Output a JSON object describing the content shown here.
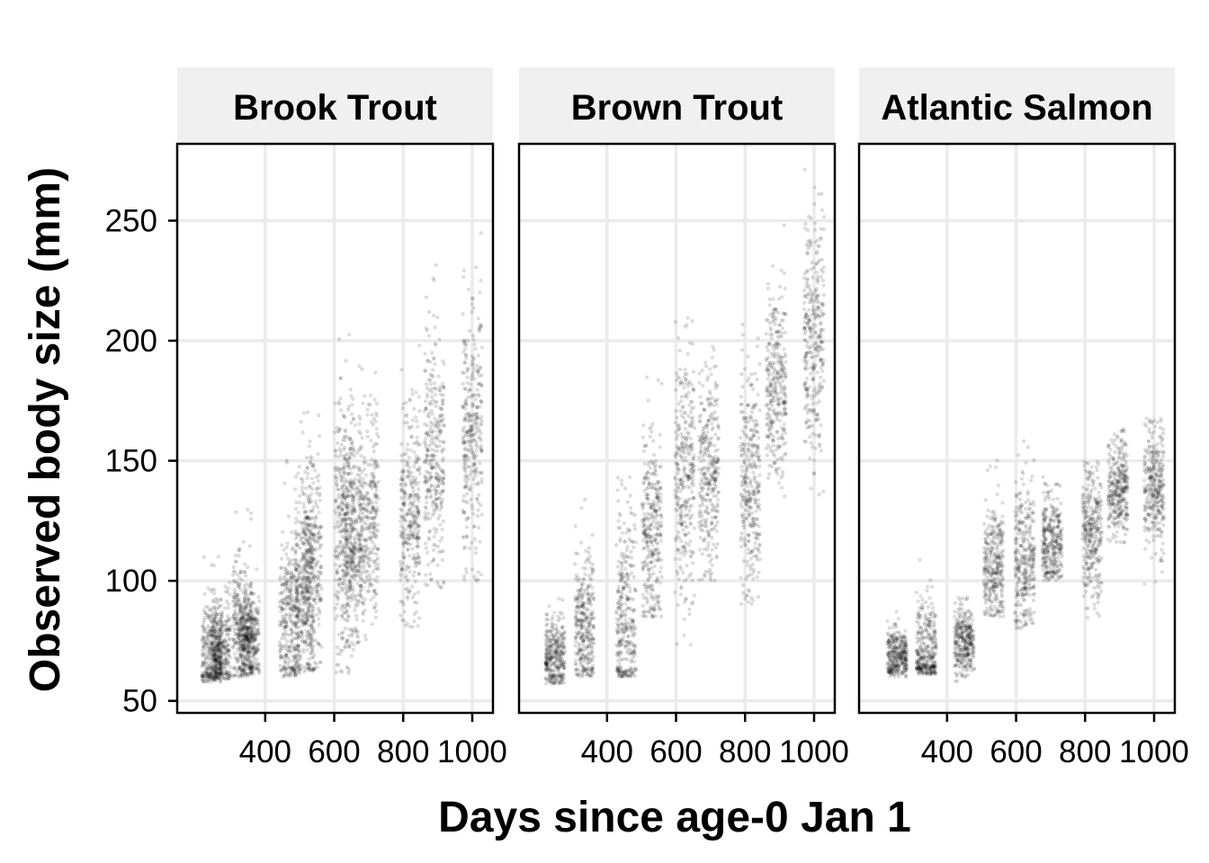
{
  "chart_data": {
    "type": "scatter",
    "xlabel": "Days since age-0 Jan 1",
    "ylabel": "Observed body size (mm)",
    "xlim": [
      145,
      1060
    ],
    "ylim": [
      45,
      282
    ],
    "x_ticks": [
      400,
      600,
      800,
      1000
    ],
    "x_tick_labels": [
      "400",
      "600",
      "800",
      "1000"
    ],
    "y_ticks": [
      50,
      100,
      150,
      200,
      250
    ],
    "y_tick_labels": [
      "50",
      "100",
      "150",
      "200",
      "250"
    ],
    "grid": true,
    "point_color": "#000000",
    "point_alpha": 0.12,
    "facets": [
      {
        "title": "Brook Trout",
        "clusters": [
          {
            "x": 245,
            "y_mean": 70,
            "y_min": 58,
            "y_max": 115
          },
          {
            "x": 270,
            "y_mean": 71,
            "y_min": 59,
            "y_max": 112
          },
          {
            "x": 335,
            "y_mean": 82,
            "y_min": 60,
            "y_max": 138
          },
          {
            "x": 355,
            "y_mean": 75,
            "y_min": 61,
            "y_max": 105
          },
          {
            "x": 470,
            "y_mean": 84,
            "y_min": 60,
            "y_max": 155
          },
          {
            "x": 515,
            "y_mean": 95,
            "y_min": 62,
            "y_max": 170
          },
          {
            "x": 535,
            "y_mean": 108,
            "y_min": 63,
            "y_max": 181
          },
          {
            "x": 630,
            "y_mean": 122,
            "y_min": 60,
            "y_max": 207
          },
          {
            "x": 650,
            "y_mean": 115,
            "y_min": 72,
            "y_max": 180
          },
          {
            "x": 700,
            "y_mean": 125,
            "y_min": 75,
            "y_max": 190
          },
          {
            "x": 820,
            "y_mean": 128,
            "y_min": 80,
            "y_max": 200
          },
          {
            "x": 890,
            "y_mean": 150,
            "y_min": 97,
            "y_max": 235
          },
          {
            "x": 1000,
            "y_mean": 162,
            "y_min": 100,
            "y_max": 245
          }
        ]
      },
      {
        "title": "Brown Trout",
        "clusters": [
          {
            "x": 250,
            "y_mean": 68,
            "y_min": 57,
            "y_max": 105
          },
          {
            "x": 335,
            "y_mean": 80,
            "y_min": 60,
            "y_max": 137
          },
          {
            "x": 455,
            "y_mean": 82,
            "y_min": 60,
            "y_max": 175
          },
          {
            "x": 530,
            "y_mean": 120,
            "y_min": 85,
            "y_max": 197
          },
          {
            "x": 625,
            "y_mean": 145,
            "y_min": 70,
            "y_max": 210
          },
          {
            "x": 695,
            "y_mean": 145,
            "y_min": 100,
            "y_max": 208
          },
          {
            "x": 815,
            "y_mean": 138,
            "y_min": 90,
            "y_max": 220
          },
          {
            "x": 890,
            "y_mean": 180,
            "y_min": 135,
            "y_max": 250
          },
          {
            "x": 1000,
            "y_mean": 200,
            "y_min": 135,
            "y_max": 272
          }
        ]
      },
      {
        "title": "Atlantic Salmon",
        "clusters": [
          {
            "x": 255,
            "y_mean": 68,
            "y_min": 60,
            "y_max": 91
          },
          {
            "x": 340,
            "y_mean": 70,
            "y_min": 61,
            "y_max": 118
          },
          {
            "x": 450,
            "y_mean": 75,
            "y_min": 58,
            "y_max": 95
          },
          {
            "x": 535,
            "y_mean": 105,
            "y_min": 85,
            "y_max": 155
          },
          {
            "x": 625,
            "y_mean": 110,
            "y_min": 80,
            "y_max": 160
          },
          {
            "x": 705,
            "y_mean": 115,
            "y_min": 100,
            "y_max": 153
          },
          {
            "x": 820,
            "y_mean": 120,
            "y_min": 82,
            "y_max": 150
          },
          {
            "x": 895,
            "y_mean": 138,
            "y_min": 115,
            "y_max": 165
          },
          {
            "x": 1000,
            "y_mean": 140,
            "y_min": 97,
            "y_max": 168
          }
        ]
      }
    ]
  }
}
